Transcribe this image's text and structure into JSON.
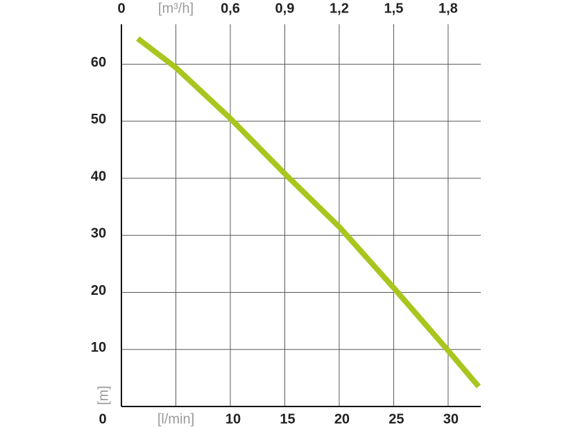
{
  "chart_data": {
    "type": "line",
    "xlim": [
      0,
      33
    ],
    "ylim": [
      0,
      67
    ],
    "x2lim": [
      0,
      1.98
    ],
    "xticks": [
      0,
      {
        "value": 5,
        "label": "[l/min]"
      },
      10,
      15,
      20,
      25,
      30
    ],
    "x2ticks": [
      0,
      {
        "value": 0.3,
        "label": "[m³/h]"
      },
      {
        "value": 0.6,
        "label": "0,6"
      },
      {
        "value": 0.9,
        "label": "0,9"
      },
      {
        "value": 1.2,
        "label": "1,2"
      },
      {
        "value": 1.5,
        "label": "1,5"
      },
      {
        "value": 1.8,
        "label": "1,8"
      }
    ],
    "yticks": [
      10,
      20,
      30,
      40,
      50,
      60
    ],
    "y_label": "[m]",
    "grid": true,
    "x": [
      1.5,
      5,
      10,
      15,
      20,
      25,
      30,
      32.8
    ],
    "series": [
      {
        "color": "#a8c61e",
        "values": [
          64.5,
          59.4,
          50.5,
          40.8,
          31.5,
          20.8,
          9.8,
          3.5
        ]
      }
    ]
  }
}
